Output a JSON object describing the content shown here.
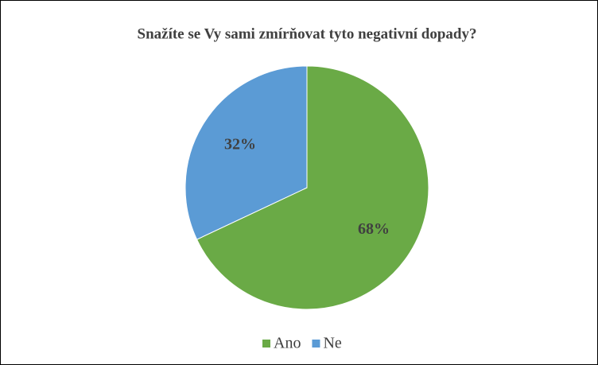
{
  "chart_data": {
    "type": "pie",
    "title": "Snažíte se Vy sami zmírňovat tyto negativní dopady?",
    "categories": [
      "Ano",
      "Ne"
    ],
    "values": [
      68,
      32
    ],
    "value_labels": [
      "68%",
      "32%"
    ],
    "colors": [
      "#6aaa46",
      "#5b9bd5"
    ],
    "legend": "bottom"
  }
}
